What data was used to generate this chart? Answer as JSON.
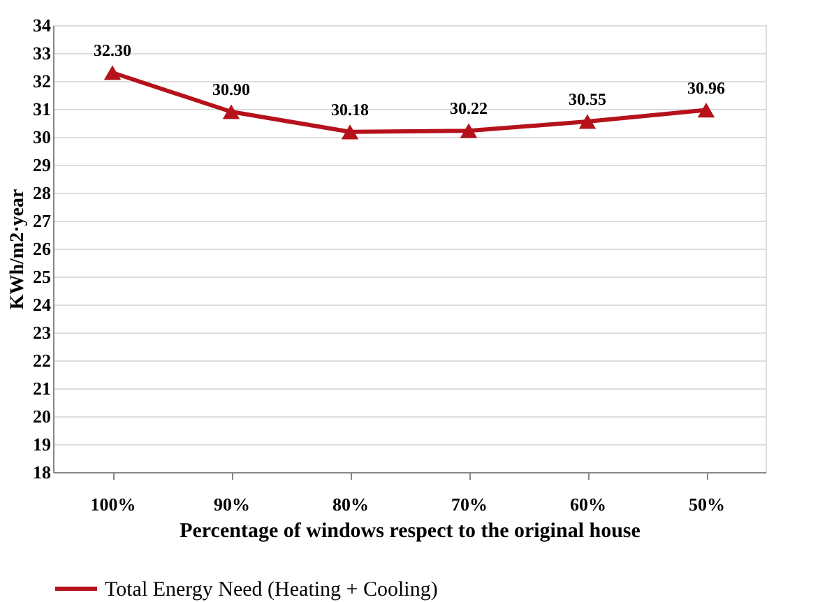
{
  "chart_data": {
    "type": "line",
    "xlabel": "Percentage of windows respect to the original house",
    "ylabel": "KWh/m2·year",
    "categories": [
      "100%",
      "90%",
      "80%",
      "70%",
      "60%",
      "50%"
    ],
    "series": [
      {
        "name": "Total Energy Need  (Heating + Cooling)",
        "color": "#b5121b",
        "values": [
          32.3,
          30.9,
          30.18,
          30.22,
          30.55,
          30.96
        ],
        "value_labels": [
          "32.30",
          "30.90",
          "30.18",
          "30.22",
          "30.55",
          "30.96"
        ]
      }
    ],
    "ylim": [
      18,
      34
    ],
    "yticks": [
      18,
      19,
      20,
      21,
      22,
      23,
      24,
      25,
      26,
      27,
      28,
      29,
      30,
      31,
      32,
      33,
      34
    ],
    "grid": "y",
    "legend": "bottom",
    "marker": "triangle",
    "line_style": "solid"
  }
}
